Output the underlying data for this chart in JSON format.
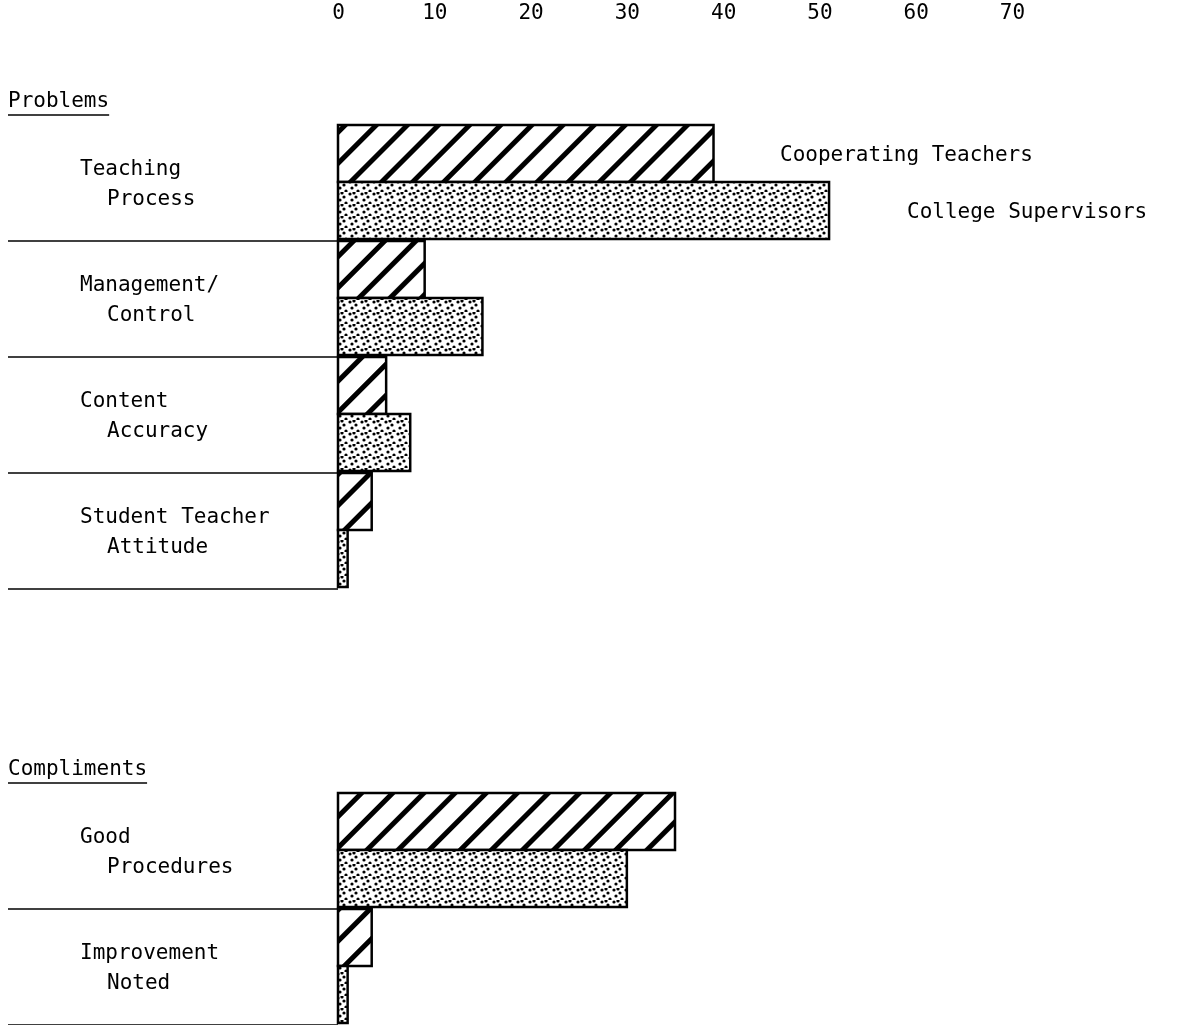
{
  "chart_data": [
    {
      "type": "bar",
      "orientation": "horizontal",
      "title": "Problems",
      "categories": [
        "Teaching\nProcess",
        "Management/\nControl",
        "Content\nAccuracy",
        "Student Teacher\nAttitude"
      ],
      "series": [
        {
          "name": "Cooperating Teachers",
          "color": "#000000",
          "values": [
            39,
            9,
            5,
            3.5
          ]
        },
        {
          "name": "College Supervisors",
          "color": "#000000",
          "values": [
            51,
            15,
            7.5,
            1
          ]
        }
      ],
      "xlim": [
        0,
        70
      ],
      "xticks": [
        0,
        10,
        20,
        30,
        40,
        50,
        60,
        70
      ],
      "legend": "top right",
      "grid": false
    },
    {
      "type": "bar",
      "orientation": "horizontal",
      "title": "Compliments",
      "categories": [
        "Good\nProcedures",
        "Improvement\nNoted"
      ],
      "series": [
        {
          "color": "#000000",
          "values": [
            35,
            3.5
          ]
        },
        {
          "color": "#000000",
          "values": [
            30,
            1
          ]
        }
      ],
      "xlim": [
        0,
        70
      ],
      "tick_labels": "y",
      "grid": false
    }
  ]
}
